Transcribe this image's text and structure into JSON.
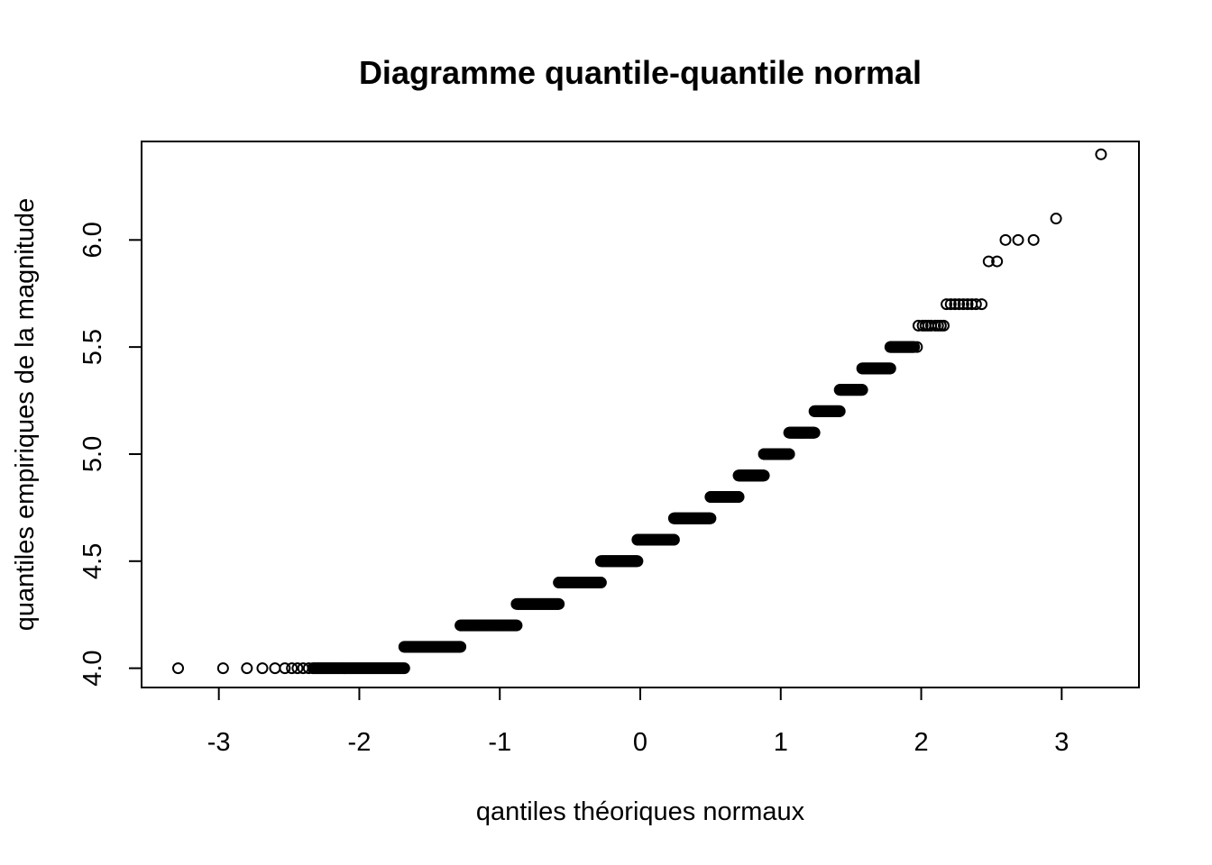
{
  "chart_data": {
    "type": "scatter",
    "title": "Diagramme quantile-quantile normal",
    "xlabel": "qantiles théoriques normaux",
    "ylabel": "quantiles empiriques de la magnitude",
    "xlim": [
      -3.55,
      3.55
    ],
    "ylim": [
      3.91,
      6.46
    ],
    "x_ticks": [
      -3,
      -2,
      -1,
      0,
      1,
      2,
      3
    ],
    "x_tick_labels": [
      "-3",
      "-2",
      "-1",
      "0",
      "1",
      "2",
      "3"
    ],
    "y_ticks": [
      4.0,
      4.5,
      5.0,
      5.5,
      6.0
    ],
    "y_tick_labels": [
      "4.0",
      "4.5",
      "5.0",
      "5.5",
      "6.0"
    ],
    "grid": false,
    "marker": "open-circle",
    "series": [
      {
        "runs": [
          {
            "y": 4.0,
            "x_from": -2.32,
            "x_to": -1.68,
            "count": 60
          },
          {
            "y": 4.1,
            "x_from": -1.68,
            "x_to": -1.28,
            "count": 60
          },
          {
            "y": 4.2,
            "x_from": -1.28,
            "x_to": -0.88,
            "count": 60
          },
          {
            "y": 4.3,
            "x_from": -0.88,
            "x_to": -0.58,
            "count": 60
          },
          {
            "y": 4.4,
            "x_from": -0.58,
            "x_to": -0.28,
            "count": 60
          },
          {
            "y": 4.5,
            "x_from": -0.28,
            "x_to": -0.02,
            "count": 60
          },
          {
            "y": 4.6,
            "x_from": -0.02,
            "x_to": 0.24,
            "count": 60
          },
          {
            "y": 4.7,
            "x_from": 0.24,
            "x_to": 0.5,
            "count": 60
          },
          {
            "y": 4.8,
            "x_from": 0.5,
            "x_to": 0.7,
            "count": 60
          },
          {
            "y": 4.9,
            "x_from": 0.7,
            "x_to": 0.88,
            "count": 60
          },
          {
            "y": 5.0,
            "x_from": 0.88,
            "x_to": 1.06,
            "count": 60
          },
          {
            "y": 5.1,
            "x_from": 1.06,
            "x_to": 1.24,
            "count": 60
          },
          {
            "y": 5.2,
            "x_from": 1.24,
            "x_to": 1.42,
            "count": 60
          },
          {
            "y": 5.3,
            "x_from": 1.42,
            "x_to": 1.58,
            "count": 60
          },
          {
            "y": 5.4,
            "x_from": 1.58,
            "x_to": 1.78,
            "count": 60
          },
          {
            "y": 5.5,
            "x_from": 1.78,
            "x_to": 1.95,
            "count": 45
          }
        ],
        "points": [
          {
            "x": -3.29,
            "y": 4.0
          },
          {
            "x": -2.97,
            "y": 4.0
          },
          {
            "x": -2.8,
            "y": 4.0
          },
          {
            "x": -2.69,
            "y": 4.0
          },
          {
            "x": -2.6,
            "y": 4.0
          },
          {
            "x": -2.53,
            "y": 4.0
          },
          {
            "x": -2.48,
            "y": 4.0
          },
          {
            "x": -2.44,
            "y": 4.0
          },
          {
            "x": -2.4,
            "y": 4.0
          },
          {
            "x": -2.36,
            "y": 4.0
          },
          {
            "x": -2.33,
            "y": 4.0
          },
          {
            "x": 1.97,
            "y": 5.5
          },
          {
            "x": 1.98,
            "y": 5.6
          },
          {
            "x": 2.01,
            "y": 5.6
          },
          {
            "x": 2.03,
            "y": 5.6
          },
          {
            "x": 2.05,
            "y": 5.6
          },
          {
            "x": 2.07,
            "y": 5.6
          },
          {
            "x": 2.1,
            "y": 5.6
          },
          {
            "x": 2.12,
            "y": 5.6
          },
          {
            "x": 2.14,
            "y": 5.6
          },
          {
            "x": 2.16,
            "y": 5.6
          },
          {
            "x": 2.18,
            "y": 5.7
          },
          {
            "x": 2.21,
            "y": 5.7
          },
          {
            "x": 2.24,
            "y": 5.7
          },
          {
            "x": 2.27,
            "y": 5.7
          },
          {
            "x": 2.3,
            "y": 5.7
          },
          {
            "x": 2.33,
            "y": 5.7
          },
          {
            "x": 2.36,
            "y": 5.7
          },
          {
            "x": 2.39,
            "y": 5.7
          },
          {
            "x": 2.43,
            "y": 5.7
          },
          {
            "x": 2.48,
            "y": 5.9
          },
          {
            "x": 2.54,
            "y": 5.9
          },
          {
            "x": 2.6,
            "y": 6.0
          },
          {
            "x": 2.69,
            "y": 6.0
          },
          {
            "x": 2.8,
            "y": 6.0
          },
          {
            "x": 2.96,
            "y": 6.1
          },
          {
            "x": 3.28,
            "y": 6.4
          }
        ]
      }
    ]
  }
}
